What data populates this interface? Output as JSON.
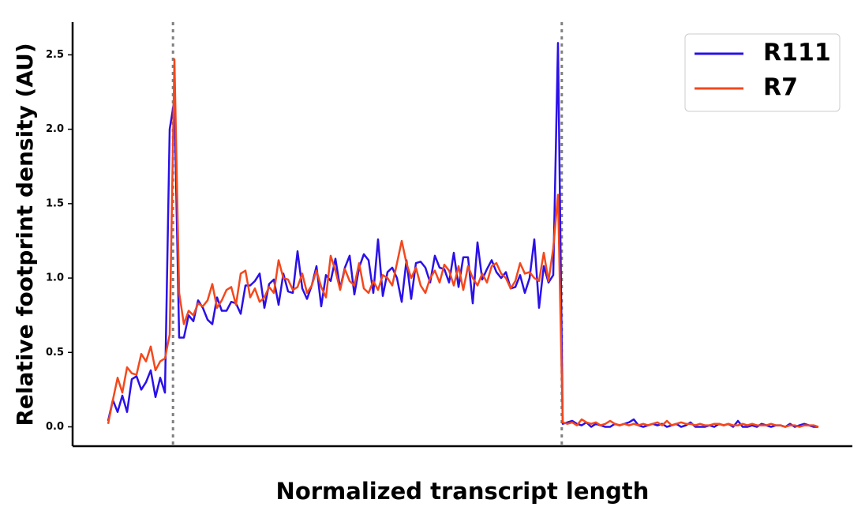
{
  "chart_data": {
    "type": "line",
    "xlabel": "Normalized transcript length",
    "ylabel": "Relative footprint density (AU)",
    "ylim": [
      -0.13,
      2.72
    ],
    "yticks": [
      {
        "value": 0,
        "label": "0.0"
      },
      0.5,
      {
        "value": 1,
        "label": "1.0"
      },
      1.5,
      {
        "value": 2,
        "label": "2.0"
      },
      2.5
    ],
    "legend": "upper right",
    "series": [
      {
        "name": "R111",
        "color": "#2a10e8",
        "values": [
          0.04,
          0.18,
          0.1,
          0.21,
          0.1,
          0.32,
          0.34,
          0.25,
          0.3,
          0.38,
          0.2,
          0.33,
          0.23,
          2.0,
          2.2,
          0.6,
          0.6,
          0.75,
          0.71,
          0.85,
          0.8,
          0.72,
          0.69,
          0.87,
          0.78,
          0.78,
          0.84,
          0.83,
          0.76,
          0.95,
          0.95,
          0.98,
          1.03,
          0.8,
          0.96,
          0.99,
          0.82,
          1.03,
          0.91,
          0.9,
          1.18,
          0.93,
          0.86,
          0.95,
          1.08,
          0.81,
          1.02,
          0.98,
          1.13,
          0.93,
          1.07,
          1.15,
          0.89,
          1.07,
          1.16,
          1.12,
          0.9,
          1.26,
          0.88,
          1.04,
          1.07,
          1.0,
          0.84,
          1.12,
          0.86,
          1.1,
          1.11,
          1.07,
          0.97,
          1.15,
          1.07,
          1.06,
          0.97,
          1.17,
          0.94,
          1.14,
          1.14,
          0.83,
          1.24,
          0.99,
          1.06,
          1.12,
          1.04,
          1.0,
          1.04,
          0.93,
          0.94,
          1.02,
          0.9,
          1.0,
          1.26,
          0.8,
          1.08,
          0.97,
          1.02,
          2.58,
          0.02,
          0.03,
          0.04,
          0.02,
          0.01,
          0.03,
          0.0,
          0.02,
          0.01,
          0.0,
          0.0,
          0.02,
          0.01,
          0.02,
          0.03,
          0.05,
          0.01,
          0.0,
          0.01,
          0.02,
          0.01,
          0.02,
          0.0,
          0.01,
          0.02,
          0.0,
          0.01,
          0.03,
          0.0,
          0.0,
          0.0,
          0.01,
          0.0,
          0.02,
          0.01,
          0.02,
          0.0,
          0.04,
          0.0,
          0.0,
          0.01,
          0.0,
          0.02,
          0.01,
          0.0,
          0.01,
          0.01,
          0.0,
          0.02,
          0.0,
          0.01,
          0.02,
          0.01,
          0.0,
          0.0
        ]
      },
      {
        "name": "R7",
        "color": "#f4481c",
        "values": [
          0.02,
          0.18,
          0.33,
          0.23,
          0.4,
          0.36,
          0.35,
          0.49,
          0.44,
          0.54,
          0.38,
          0.44,
          0.46,
          0.62,
          2.47,
          0.9,
          0.69,
          0.78,
          0.75,
          0.83,
          0.81,
          0.85,
          0.96,
          0.8,
          0.85,
          0.92,
          0.94,
          0.82,
          1.03,
          1.05,
          0.87,
          0.93,
          0.84,
          0.87,
          0.94,
          0.9,
          1.12,
          1.0,
          0.99,
          0.92,
          0.94,
          1.03,
          0.9,
          0.95,
          1.05,
          0.94,
          0.87,
          1.15,
          1.05,
          0.92,
          1.06,
          0.98,
          0.95,
          1.1,
          0.93,
          0.9,
          0.98,
          0.92,
          1.02,
          1.0,
          0.95,
          1.1,
          1.25,
          1.1,
          1.0,
          1.07,
          0.95,
          0.9,
          1.0,
          1.05,
          0.97,
          1.09,
          1.05,
          0.95,
          1.08,
          0.92,
          1.08,
          1.0,
          0.95,
          1.03,
          0.97,
          1.08,
          1.1,
          1.03,
          1.0,
          0.93,
          0.98,
          1.1,
          1.03,
          1.04,
          1.0,
          0.98,
          1.17,
          0.98,
          1.2,
          1.56,
          0.03,
          0.02,
          0.03,
          0.01,
          0.05,
          0.03,
          0.02,
          0.03,
          0.01,
          0.02,
          0.04,
          0.02,
          0.01,
          0.02,
          0.01,
          0.02,
          0.01,
          0.02,
          0.01,
          0.02,
          0.03,
          0.01,
          0.04,
          0.01,
          0.02,
          0.03,
          0.02,
          0.02,
          0.01,
          0.02,
          0.01,
          0.01,
          0.02,
          0.02,
          0.01,
          0.02,
          0.01,
          0.01,
          0.02,
          0.01,
          0.02,
          0.01,
          0.01,
          0.01,
          0.02,
          0.01,
          0.01,
          0.0,
          0.01,
          0.01,
          0.0,
          0.01,
          0.01,
          0.01,
          0.0
        ]
      }
    ]
  }
}
